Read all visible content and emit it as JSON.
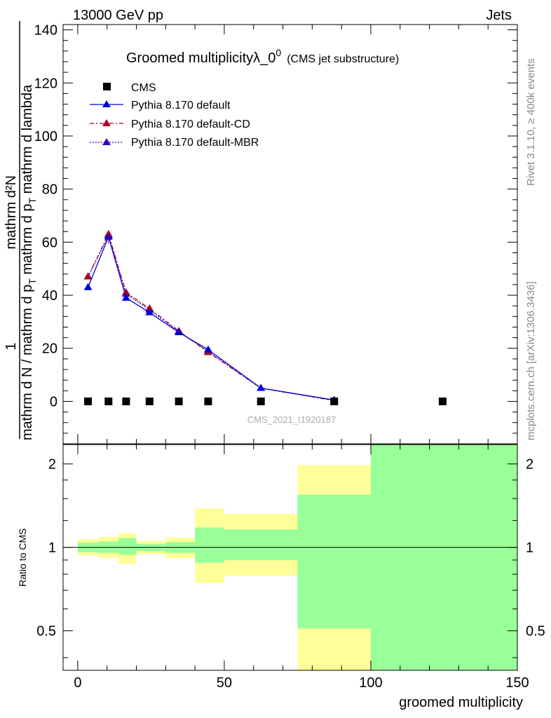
{
  "header": {
    "left": "13000 GeV pp",
    "right": "Jets"
  },
  "side_labels": {
    "rivet": "Rivet 3.1.10, ≥ 400k events",
    "mcplots": "mcplots.cern.ch [arXiv:1306.3436]"
  },
  "watermark": "CMS_2021_I1920187",
  "colors": {
    "default": "#0000dd",
    "cd": "#aa0022",
    "mbr": "#3300bb",
    "data": "#000000",
    "band_yellow": "#ffff99",
    "band_green": "#99ff99"
  },
  "chart_data": [
    {
      "type": "line",
      "title_main": "Groomed multiplicityλ_0",
      "title_sup": "0",
      "title_paren": "(CMS jet substructure)",
      "ylabel_num": "mathrm d²N",
      "ylabel_num_prefix": "1",
      "ylabel_den": "mathrm d N / mathrm d p",
      "ylabel_den_sub": "T",
      "ylabel_den_tail": " mathrm d p",
      "ylabel_den_sub2": "T",
      "ylabel_den_tail2": " mathrm d lambda",
      "ylabel_full": "mathrm d N / mathrm d p_T mathrm d p_T mathrm d lambda",
      "xlim": [
        -5,
        150
      ],
      "ylim": [
        -16,
        142
      ],
      "y_ticks": [
        0,
        20,
        40,
        60,
        80,
        100,
        120,
        140
      ],
      "y_tick_labels": [
        "0",
        "20",
        "40",
        "60",
        "80",
        "100",
        "120",
        "140"
      ],
      "legend": {
        "cms": "CMS",
        "default": "Pythia 8.170 default",
        "cd": "Pythia 8.170 default-CD",
        "mbr": "Pythia 8.170 default-MBR"
      },
      "series": [
        {
          "name": "CMS",
          "x": [
            3.5,
            10.5,
            16.5,
            24.5,
            34.5,
            44.5,
            62.5,
            87.5,
            124.5
          ],
          "values": [
            0,
            0,
            0,
            0,
            0,
            0,
            0,
            0,
            0
          ]
        },
        {
          "name": "Pythia 8.170 default",
          "x": [
            3.5,
            10.5,
            16.5,
            24.5,
            34.5,
            44.5,
            62.5,
            87.5
          ],
          "values": [
            43,
            62,
            39,
            33.5,
            26,
            19.5,
            5,
            0.5
          ]
        },
        {
          "name": "Pythia 8.170 default-CD",
          "x": [
            3.5,
            10.5,
            16.5,
            24.5,
            34.5,
            44.5,
            62.5,
            87.5
          ],
          "values": [
            47,
            63,
            41,
            35,
            26.5,
            18.5,
            5,
            0.3
          ]
        },
        {
          "name": "Pythia 8.170 default-MBR",
          "x": [
            3.5,
            10.5,
            16.5,
            24.5,
            34.5,
            44.5,
            62.5,
            87.5
          ],
          "values": [
            47,
            62.5,
            40.5,
            34.5,
            26.3,
            18.8,
            5,
            0.4
          ]
        }
      ]
    },
    {
      "type": "area",
      "ylabel": "Ratio to CMS",
      "xlabel": "groomed multiplicity",
      "xlim": [
        -5,
        150
      ],
      "ylim": [
        0.36,
        2.35
      ],
      "y_scale": "log",
      "y_ticks": [
        0.5,
        1,
        2
      ],
      "y_tick_labels": [
        "0.5",
        "1",
        "2"
      ],
      "x_ticks": [
        0,
        50,
        100,
        150
      ],
      "x_tick_labels": [
        "0",
        "50",
        "100",
        "150"
      ],
      "reference": 1,
      "bands": [
        {
          "x_low": 0,
          "x_high": 7,
          "yellow": [
            0.935,
            1.07
          ],
          "green": [
            0.96,
            1.04
          ]
        },
        {
          "x_low": 7,
          "x_high": 14,
          "yellow": [
            0.915,
            1.09
          ],
          "green": [
            0.955,
            1.05
          ]
        },
        {
          "x_low": 14,
          "x_high": 20,
          "yellow": [
            0.87,
            1.125
          ],
          "green": [
            0.94,
            1.08
          ]
        },
        {
          "x_low": 20,
          "x_high": 30,
          "yellow": [
            0.945,
            1.055
          ],
          "green": [
            0.97,
            1.03
          ]
        },
        {
          "x_low": 30,
          "x_high": 40,
          "yellow": [
            0.915,
            1.085
          ],
          "green": [
            0.955,
            1.045
          ]
        },
        {
          "x_low": 40,
          "x_high": 50,
          "yellow": [
            0.745,
            1.38
          ],
          "green": [
            0.88,
            1.18
          ]
        },
        {
          "x_low": 50,
          "x_high": 75,
          "yellow": [
            0.79,
            1.32
          ],
          "green": [
            0.9,
            1.16
          ]
        },
        {
          "x_low": 75,
          "x_high": 100,
          "yellow": [
            0.3,
            1.98
          ],
          "green": [
            0.51,
            1.55
          ]
        },
        {
          "x_low": 100,
          "x_high": 150,
          "yellow": [
            0.3,
            2.5
          ],
          "green": [
            0.3,
            2.5
          ]
        }
      ]
    }
  ]
}
